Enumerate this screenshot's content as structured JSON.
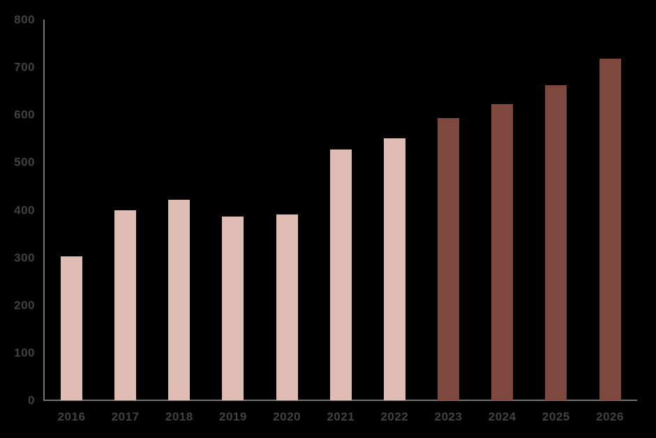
{
  "chart_data": {
    "type": "bar",
    "title": "",
    "xlabel": "",
    "ylabel": "",
    "categories": [
      "2016",
      "2017",
      "2018",
      "2019",
      "2020",
      "2021",
      "2022",
      "2023",
      "2024",
      "2025",
      "2026"
    ],
    "values": [
      303,
      400,
      421,
      386,
      390,
      527,
      551,
      593,
      623,
      662,
      718
    ],
    "bar_colors": [
      "#dfbdb4",
      "#dfbdb4",
      "#dfbdb4",
      "#dfbdb4",
      "#dfbdb4",
      "#dfbdb4",
      "#dfbdb4",
      "#7e483f",
      "#7e483f",
      "#7e483f",
      "#7e483f"
    ],
    "ylim": [
      0,
      800
    ],
    "yticks": [
      0,
      100,
      200,
      300,
      400,
      500,
      600,
      700,
      800
    ],
    "grid": false,
    "legend": false
  },
  "colors": {
    "background": "#000000",
    "light_bar": "#dfbdb4",
    "dark_bar": "#7e483f",
    "axis_line": "#737373",
    "tick_label": "#424242"
  }
}
